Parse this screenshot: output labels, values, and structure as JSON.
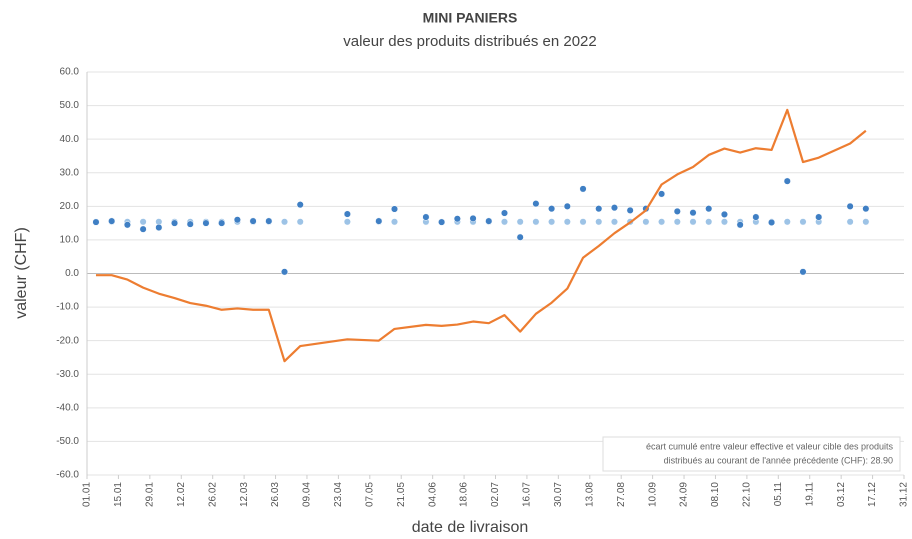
{
  "chart_data": {
    "type": "scatter",
    "title": "MINI PANIERS",
    "subtitle": "valeur des produits distribués en 2022",
    "y_label": "valeur (CHF)",
    "x_label": "date de livraison",
    "annotation": [
      "écart cumulé entre valeur effective et valeur cible des produits",
      "distribués au courant de l'année précédente (CHF): 28.90"
    ],
    "x": [
      4,
      11,
      18,
      25,
      32,
      39,
      46,
      53,
      60,
      67,
      74,
      81,
      88,
      95,
      116,
      130,
      137,
      151,
      158,
      165,
      172,
      179,
      186,
      193,
      200,
      207,
      214,
      221,
      228,
      235,
      242,
      249,
      256,
      263,
      270,
      277,
      284,
      291,
      298,
      305,
      312,
      319,
      326,
      340,
      347
    ],
    "series": [
      {
        "type": "scatter",
        "color": "#9dc3e6",
        "values": [
          15.4,
          15.4,
          15.4,
          15.4,
          15.4,
          15.4,
          15.4,
          15.4,
          15.4,
          15.4,
          15.4,
          15.4,
          15.4,
          15.4,
          15.4,
          15.4,
          15.4,
          15.4,
          15.4,
          15.4,
          15.4,
          15.4,
          15.4,
          15.4,
          15.4,
          15.4,
          15.4,
          15.4,
          15.4,
          15.4,
          15.4,
          15.4,
          15.4,
          15.4,
          15.4,
          15.4,
          15.4,
          15.4,
          15.4,
          15.4,
          15.4,
          15.4,
          15.4,
          15.4,
          15.4
        ]
      },
      {
        "type": "scatter",
        "color": "#3f7fc4",
        "values": [
          15.3,
          15.6,
          14.5,
          13.2,
          13.7,
          15.0,
          14.7,
          15.0,
          15.0,
          16.0,
          15.6,
          15.6,
          0.5,
          20.5,
          17.7,
          15.6,
          19.2,
          16.8,
          15.3,
          16.3,
          16.4,
          15.6,
          18.0,
          10.8,
          20.8,
          19.3,
          20.0,
          25.2,
          19.3,
          19.6,
          18.8,
          19.3,
          23.7,
          18.5,
          18.1,
          19.3,
          17.6,
          14.5,
          16.8,
          15.2,
          27.5,
          0.5,
          16.8,
          20.0,
          19.3
        ]
      },
      {
        "type": "line",
        "color": "#ed7d31",
        "values": [
          -0.5,
          -0.5,
          -1.8,
          -4.2,
          -6.0,
          -7.3,
          -8.8,
          -9.6,
          -10.8,
          -10.4,
          -10.8,
          -10.8,
          -26.1,
          -21.6,
          -19.6,
          -20.0,
          -16.5,
          -15.3,
          -15.6,
          -15.2,
          -14.3,
          -14.8,
          -12.4,
          -17.3,
          -12.0,
          -8.7,
          -4.5,
          4.7,
          8.2,
          12.0,
          15.2,
          18.8,
          26.5,
          29.5,
          31.7,
          35.3,
          37.2,
          36.0,
          37.3,
          36.8,
          48.7,
          33.2,
          34.5,
          38.7,
          42.5
        ]
      }
    ],
    "xlim": [
      0,
      364
    ],
    "xticks": [
      {
        "value": 0,
        "label": "01.01"
      },
      {
        "value": 14,
        "label": "15.01"
      },
      {
        "value": 28,
        "label": "29.01"
      },
      {
        "value": 42,
        "label": "12.02"
      },
      {
        "value": 56,
        "label": "26.02"
      },
      {
        "value": 70,
        "label": "12.03"
      },
      {
        "value": 84,
        "label": "26.03"
      },
      {
        "value": 98,
        "label": "09.04"
      },
      {
        "value": 112,
        "label": "23.04"
      },
      {
        "value": 126,
        "label": "07.05"
      },
      {
        "value": 140,
        "label": "21.05"
      },
      {
        "value": 154,
        "label": "04.06"
      },
      {
        "value": 168,
        "label": "18.06"
      },
      {
        "value": 182,
        "label": "02.07"
      },
      {
        "value": 196,
        "label": "16.07"
      },
      {
        "value": 210,
        "label": "30.07"
      },
      {
        "value": 224,
        "label": "13.08"
      },
      {
        "value": 238,
        "label": "27.08"
      },
      {
        "value": 252,
        "label": "10.09"
      },
      {
        "value": 266,
        "label": "24.09"
      },
      {
        "value": 280,
        "label": "08.10"
      },
      {
        "value": 294,
        "label": "22.10"
      },
      {
        "value": 308,
        "label": "05.11"
      },
      {
        "value": 322,
        "label": "19.11"
      },
      {
        "value": 336,
        "label": "03.12"
      },
      {
        "value": 350,
        "label": "17.12"
      },
      {
        "value": 364,
        "label": "31.12"
      }
    ],
    "ylim": [
      -60,
      60
    ],
    "yticks": [
      {
        "value": -60,
        "label": "-60.0"
      },
      {
        "value": -50,
        "label": "-50.0"
      },
      {
        "value": -40,
        "label": "-40.0"
      },
      {
        "value": -30,
        "label": "-30.0"
      },
      {
        "value": -20,
        "label": "-20.0"
      },
      {
        "value": -10,
        "label": "-10.0"
      },
      {
        "value": 0,
        "label": "0.0"
      },
      {
        "value": 10,
        "label": "10.0"
      },
      {
        "value": 20,
        "label": "20.0"
      },
      {
        "value": 30,
        "label": "30.0"
      },
      {
        "value": 40,
        "label": "40.0"
      },
      {
        "value": 50,
        "label": "50.0"
      },
      {
        "value": 60,
        "label": "60.0"
      }
    ],
    "grid": true
  }
}
